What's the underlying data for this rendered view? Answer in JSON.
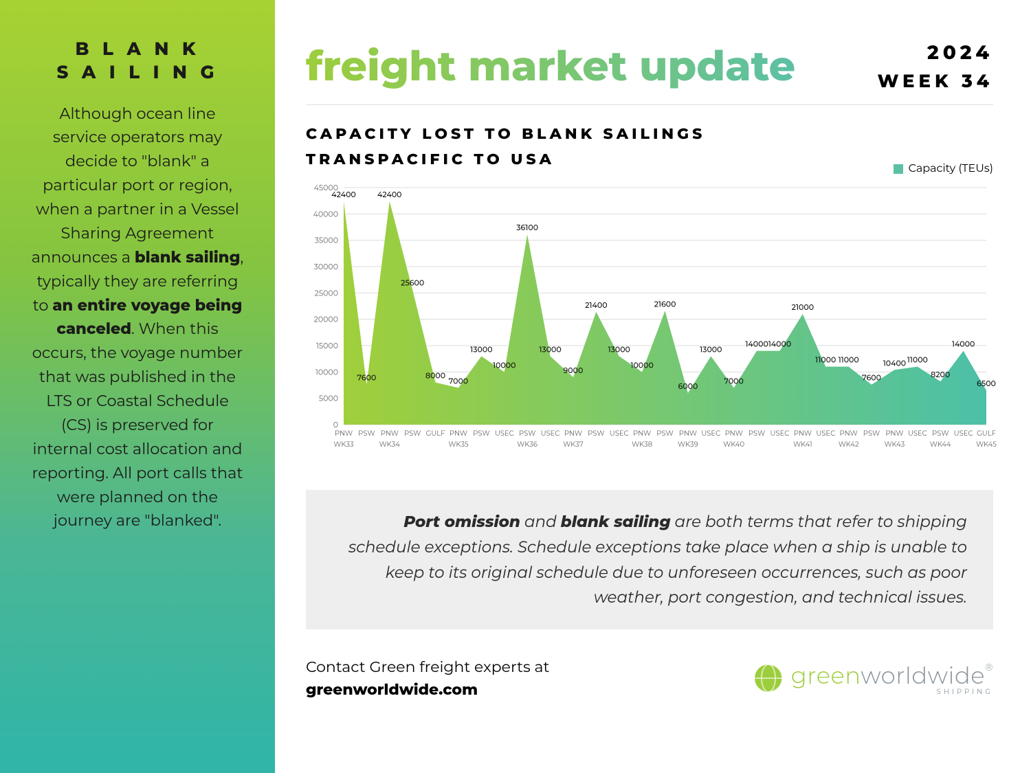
{
  "sidebar": {
    "title_line1": "B L A N K",
    "title_line2": "S A I L I N G",
    "body_pre": "Although ocean line service operators may decide to \"blank\" a particular port or region, when a partner in a Vessel Sharing Agreement announces a ",
    "body_bold1": "blank sailing",
    "body_mid1": ", typically they are referring to ",
    "body_bold2": "an entire voyage being canceled",
    "body_post": ". When this occurs, the voyage number that was published in the LTS or Coastal Schedule (CS) is preserved for internal cost allocation and reporting. All port calls that were planned on the journey are \"blanked\".",
    "sidebar_gradient_from": "#a8d233",
    "sidebar_gradient_to": "#2fb5a8"
  },
  "header": {
    "title": "freight market update",
    "title_gradient_from": "#9ccd3c",
    "title_gradient_to": "#5cc0a5",
    "year": "2024",
    "week": "WEEK 34"
  },
  "chart": {
    "title_line1": "CAPACITY LOST TO BLANK SAILINGS",
    "title_line2": "TRANSPACIFIC TO USA",
    "legend_label": "Capacity (TEUs)",
    "legend_color": "#5cc0a5",
    "type": "area",
    "fill_gradient_from": "#a0cf3a",
    "fill_gradient_to": "#4cc0a8",
    "background_color": "#ffffff",
    "grid_color": "#dcdcdc",
    "axis_text_color": "#666666",
    "axis_fontsize": 11,
    "ylim": [
      0,
      45000
    ],
    "ytick_step": 5000,
    "line_width": 2,
    "data_label_fontsize": 11,
    "data_label_color": "#111111",
    "points": [
      {
        "lane": "PNW",
        "wk": "WK33",
        "value": 42400
      },
      {
        "lane": "PSW",
        "wk": "",
        "value": 7600
      },
      {
        "lane": "PNW",
        "wk": "WK34",
        "value": 42400
      },
      {
        "lane": "PSW",
        "wk": "",
        "value": 25600
      },
      {
        "lane": "GULF",
        "wk": "",
        "value": 8000
      },
      {
        "lane": "PNW",
        "wk": "WK35",
        "value": 7000
      },
      {
        "lane": "PSW",
        "wk": "",
        "value": 13000
      },
      {
        "lane": "USEC",
        "wk": "",
        "value": 10000
      },
      {
        "lane": "PSW",
        "wk": "WK36",
        "value": 36100
      },
      {
        "lane": "USEC",
        "wk": "",
        "value": 13000
      },
      {
        "lane": "PNW",
        "wk": "WK37",
        "value": 9000
      },
      {
        "lane": "PSW",
        "wk": "",
        "value": 21400
      },
      {
        "lane": "USEC",
        "wk": "",
        "value": 13000
      },
      {
        "lane": "PNW",
        "wk": "WK38",
        "value": 10000
      },
      {
        "lane": "PSW",
        "wk": "",
        "value": 21600
      },
      {
        "lane": "PNW",
        "wk": "WK39",
        "value": 6000
      },
      {
        "lane": "USEC",
        "wk": "",
        "value": 13000
      },
      {
        "lane": "PNW",
        "wk": "WK40",
        "value": 7000
      },
      {
        "lane": "PSW",
        "wk": "",
        "value": 14000
      },
      {
        "lane": "USEC",
        "wk": "",
        "value": 14000
      },
      {
        "lane": "PNW",
        "wk": "WK41",
        "value": 21000
      },
      {
        "lane": "USEC",
        "wk": "",
        "value": 11000
      },
      {
        "lane": "PNW",
        "wk": "WK42",
        "value": 11000
      },
      {
        "lane": "PSW",
        "wk": "",
        "value": 7600
      },
      {
        "lane": "PNW",
        "wk": "WK43",
        "value": 10400
      },
      {
        "lane": "USEC",
        "wk": "",
        "value": 11000
      },
      {
        "lane": "PSW",
        "wk": "WK44",
        "value": 8200
      },
      {
        "lane": "USEC",
        "wk": "",
        "value": 14000
      },
      {
        "lane": "GULF",
        "wk": "WK45",
        "value": 6500
      }
    ]
  },
  "info": {
    "bold1": "Port omission",
    "mid1": " and ",
    "bold2": "blank sailing",
    "rest": " are both terms that refer to shipping schedule exceptions. Schedule exceptions take place when a ship is unable to keep to its original schedule due to unforeseen occurrences, such as poor weather, port congestion, and technical issues."
  },
  "contact": {
    "line1": "Contact Green freight experts at",
    "url": "greenworldwide.com"
  },
  "logo": {
    "brand1": "green",
    "brand2": "worldwide",
    "sub": "SHIPPING",
    "icon_color": "#9ccd3c",
    "text_color": "#8a949b"
  }
}
